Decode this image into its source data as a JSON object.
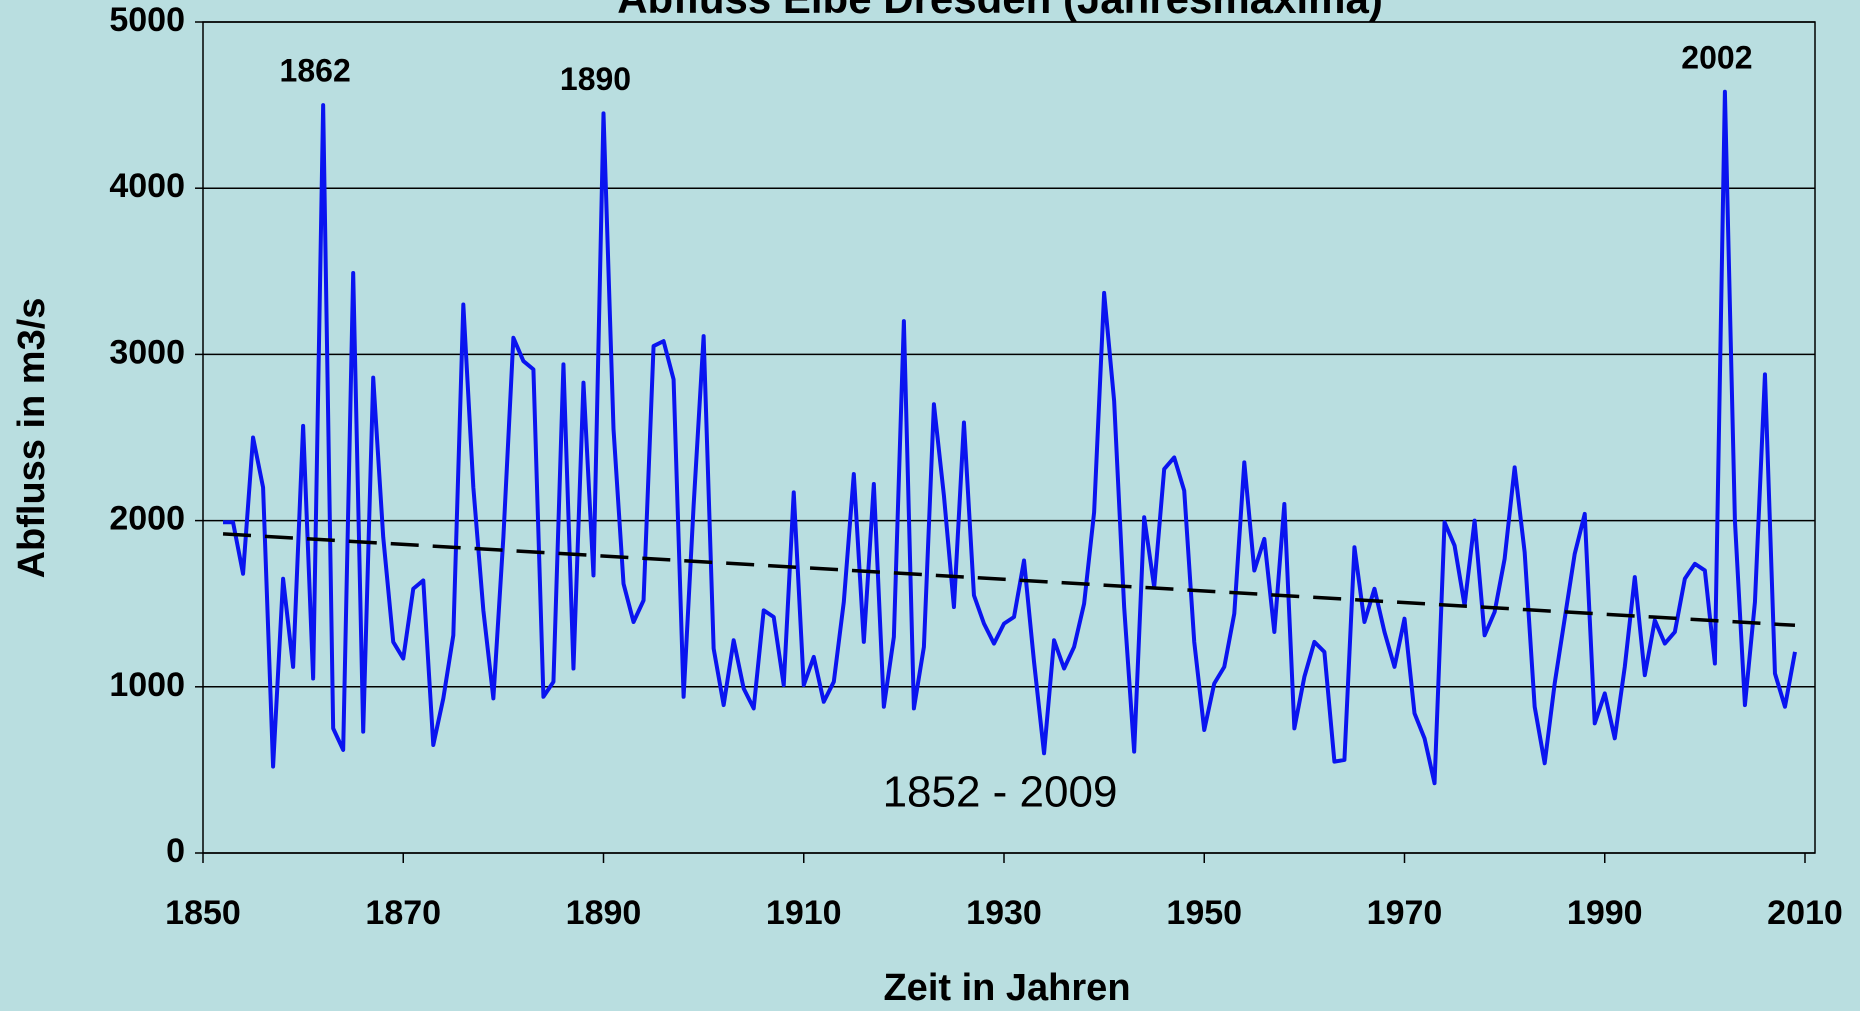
{
  "chart_data": {
    "type": "line",
    "title": "Abfluss Elbe Dresden (Jahresmaxima)",
    "xlabel": "Zeit in Jahren",
    "ylabel": "Abfluss in m3/s",
    "annotations": [
      "1862",
      "1890",
      "2002"
    ],
    "period_label": "1852 - 2009",
    "xlim": [
      1850,
      2010
    ],
    "xticks": [
      1850,
      1870,
      1890,
      1910,
      1930,
      1950,
      1970,
      1990,
      2010
    ],
    "ylim": [
      0,
      5000
    ],
    "yticks": [
      0,
      1000,
      2000,
      3000,
      4000,
      5000
    ],
    "grid": true,
    "x": [
      1852,
      1853,
      1854,
      1855,
      1856,
      1857,
      1858,
      1859,
      1860,
      1861,
      1862,
      1863,
      1864,
      1865,
      1866,
      1867,
      1868,
      1869,
      1870,
      1871,
      1872,
      1873,
      1874,
      1875,
      1876,
      1877,
      1878,
      1879,
      1880,
      1881,
      1882,
      1883,
      1884,
      1885,
      1886,
      1887,
      1888,
      1889,
      1890,
      1891,
      1892,
      1893,
      1894,
      1895,
      1896,
      1897,
      1898,
      1899,
      1900,
      1901,
      1902,
      1903,
      1904,
      1905,
      1906,
      1907,
      1908,
      1909,
      1910,
      1911,
      1912,
      1913,
      1914,
      1915,
      1916,
      1917,
      1918,
      1919,
      1920,
      1921,
      1922,
      1923,
      1924,
      1925,
      1926,
      1927,
      1928,
      1929,
      1930,
      1931,
      1932,
      1933,
      1934,
      1935,
      1936,
      1937,
      1938,
      1939,
      1940,
      1941,
      1942,
      1943,
      1944,
      1945,
      1946,
      1947,
      1948,
      1949,
      1950,
      1951,
      1952,
      1953,
      1954,
      1955,
      1956,
      1957,
      1958,
      1959,
      1960,
      1961,
      1962,
      1963,
      1964,
      1965,
      1966,
      1967,
      1968,
      1969,
      1970,
      1971,
      1972,
      1973,
      1974,
      1975,
      1976,
      1977,
      1978,
      1979,
      1980,
      1981,
      1982,
      1983,
      1984,
      1985,
      1986,
      1987,
      1988,
      1989,
      1990,
      1991,
      1992,
      1993,
      1994,
      1995,
      1996,
      1997,
      1998,
      1999,
      2000,
      2001,
      2002,
      2003,
      2004,
      2005,
      2006,
      2007,
      2008,
      2009
    ],
    "series": [
      {
        "color": "#0a14f0",
        "values": [
          1990,
          1990,
          1680,
          2500,
          2200,
          520,
          1650,
          1120,
          2570,
          1050,
          4500,
          750,
          620,
          3490,
          730,
          2860,
          1900,
          1270,
          1170,
          1590,
          1640,
          650,
          930,
          1310,
          3300,
          2200,
          1460,
          930,
          1900,
          3100,
          2960,
          2910,
          940,
          1030,
          2940,
          1110,
          2830,
          1670,
          4450,
          2550,
          1620,
          1390,
          1520,
          3050,
          3080,
          2850,
          940,
          2090,
          3110,
          1230,
          890,
          1280,
          990,
          870,
          1460,
          1420,
          1010,
          2170,
          1010,
          1180,
          910,
          1030,
          1510,
          2280,
          1270,
          2220,
          880,
          1300,
          3200,
          870,
          1240,
          2700,
          2150,
          1480,
          2590,
          1550,
          1380,
          1260,
          1380,
          1420,
          1760,
          1150,
          600,
          1280,
          1110,
          1240,
          1500,
          2050,
          3370,
          2720,
          1480,
          610,
          2020,
          1600,
          2310,
          2380,
          2180,
          1270,
          740,
          1020,
          1120,
          1440,
          2350,
          1700,
          1890,
          1330,
          2100,
          750,
          1060,
          1270,
          1210,
          550,
          560,
          1840,
          1390,
          1590,
          1330,
          1120,
          1410,
          840,
          690,
          420,
          1990,
          1850,
          1490,
          2000,
          1310,
          1450,
          1770,
          2320,
          1810,
          880,
          540,
          1020,
          1410,
          1800,
          2040,
          780,
          960,
          690,
          1120,
          1660,
          1070,
          1400,
          1260,
          1330,
          1650,
          1740,
          1700,
          1140,
          4580,
          2000,
          890,
          1510,
          2880,
          1080,
          880,
          1210
        ]
      }
    ],
    "trend": {
      "color": "#000000",
      "x": [
        1852,
        2009
      ],
      "values": [
        1920,
        1370
      ]
    }
  }
}
